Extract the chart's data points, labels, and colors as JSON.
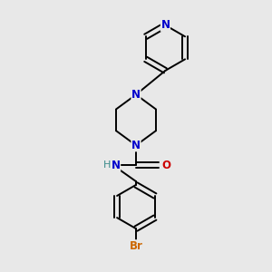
{
  "background_color": "#e8e8e8",
  "bond_color": "#000000",
  "n_color": "#0000cc",
  "o_color": "#cc0000",
  "br_color": "#cc6600",
  "figsize": [
    3.0,
    3.0
  ],
  "dpi": 100,
  "xlim": [
    0,
    10
  ],
  "ylim": [
    0,
    10
  ]
}
